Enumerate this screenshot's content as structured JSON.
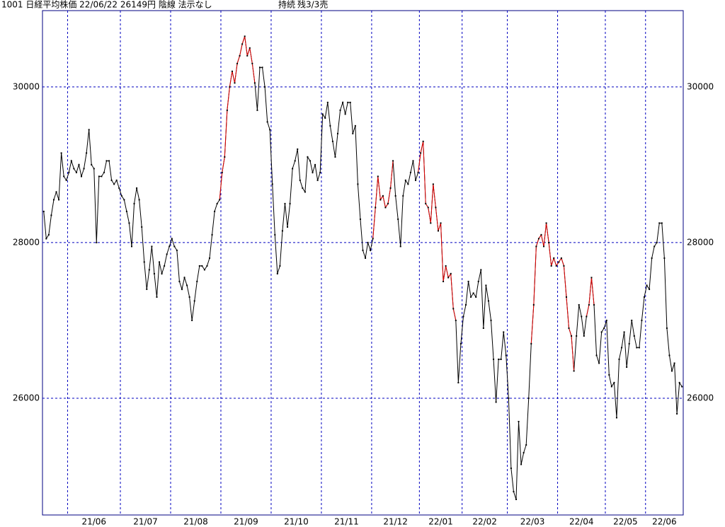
{
  "chart_data": {
    "type": "line",
    "title": "1001 日経平均株価 22/06/22 26149円 陰線 法示なし",
    "status": "持続",
    "position": "残3/3売",
    "ylim": [
      24500,
      30980
    ],
    "yticks": [
      26000,
      28000,
      30000
    ],
    "grid": true,
    "categories": [
      null,
      null,
      null,
      null,
      null,
      null,
      null,
      null,
      null,
      null,
      "21/06",
      null,
      null,
      null,
      null,
      null,
      null,
      null,
      null,
      null,
      null,
      null,
      null,
      null,
      null,
      null,
      null,
      null,
      null,
      null,
      null,
      "21/07",
      null,
      null,
      null,
      null,
      null,
      null,
      null,
      null,
      null,
      null,
      null,
      null,
      null,
      null,
      null,
      null,
      null,
      null,
      null,
      "21/08",
      null,
      null,
      null,
      null,
      null,
      null,
      null,
      null,
      null,
      null,
      null,
      null,
      null,
      null,
      null,
      null,
      null,
      null,
      null,
      "21/09",
      null,
      null,
      null,
      null,
      null,
      null,
      null,
      null,
      null,
      null,
      null,
      null,
      null,
      null,
      null,
      null,
      null,
      null,
      null,
      "21/10",
      null,
      null,
      null,
      null,
      null,
      null,
      null,
      null,
      null,
      null,
      null,
      null,
      null,
      null,
      null,
      null,
      null,
      null,
      null,
      "21/11",
      null,
      null,
      null,
      null,
      null,
      null,
      null,
      null,
      null,
      null,
      null,
      null,
      null,
      null,
      null,
      null,
      null,
      null,
      null,
      "21/12",
      null,
      null,
      null,
      null,
      null,
      null,
      null,
      null,
      null,
      null,
      null,
      null,
      null,
      null,
      null,
      null,
      null,
      null,
      "22/01",
      null,
      null,
      null,
      null,
      null,
      null,
      null,
      null,
      null,
      null,
      null,
      null,
      null,
      null,
      null,
      null,
      "22/02",
      null,
      null,
      null,
      null,
      null,
      null,
      null,
      null,
      null,
      null,
      null,
      null,
      null,
      null,
      null,
      null,
      null,
      "22/03",
      null,
      null,
      null,
      null,
      null,
      null,
      null,
      null,
      null,
      null,
      null,
      null,
      null,
      null,
      null,
      null,
      null,
      null,
      null,
      "22/04",
      null,
      null,
      null,
      null,
      null,
      null,
      null,
      null,
      null,
      null,
      null,
      null,
      null,
      null,
      null,
      null,
      null,
      null,
      "22/05",
      null,
      null,
      null,
      null,
      null,
      null,
      null,
      null,
      null,
      null,
      null,
      null,
      null,
      null,
      null,
      "22/06",
      null,
      null,
      null,
      null,
      null,
      null,
      null,
      null,
      null,
      null,
      null,
      null,
      null,
      null
    ],
    "series": [
      {
        "color": "#000000",
        "values": [
          28400,
          28050,
          28100,
          28350,
          28550,
          28650,
          28550,
          29150,
          28850,
          28800,
          28900,
          29050,
          28950,
          28900,
          29000,
          28850,
          28950,
          29150,
          29450,
          29000,
          28950,
          28000,
          28850,
          28850,
          28900,
          29050,
          29050,
          28800,
          28750,
          28800,
          28700,
          28600,
          28550,
          28400,
          28250,
          27950,
          28500,
          28700,
          28550,
          28200,
          27750,
          27400,
          27650,
          27950,
          27600,
          27300,
          27750,
          27600,
          27700,
          27850,
          27950,
          28050,
          27950,
          27900,
          27500,
          27400,
          27550,
          27450,
          27300,
          27000,
          27250,
          27500,
          27700,
          27700,
          27650,
          27700,
          27800,
          28100,
          28400,
          28500,
          28550,
          28900,
          29100,
          29700,
          30000,
          30200,
          30050,
          30300,
          30400,
          30550,
          30650,
          30400,
          30500,
          30300,
          30050,
          29700,
          30250,
          30250,
          30000,
          29550,
          29450,
          28750,
          28100,
          27600,
          27700,
          28150,
          28500,
          28200,
          28500,
          28950,
          29050,
          29200,
          28800,
          28700,
          28650,
          29100,
          29050,
          28900,
          29000,
          28800,
          28900,
          29650,
          29600,
          29800,
          29500,
          29300,
          29100,
          29400,
          29700,
          29800,
          29650,
          29800,
          29800,
          29400,
          29500,
          28750,
          28300,
          27900,
          27800,
          28000,
          27900,
          28050,
          28450,
          28850,
          28550,
          28600,
          28450,
          28500,
          28700,
          29050,
          28600,
          28300,
          27950,
          28600,
          28800,
          28750,
          28900,
          29050,
          28800,
          28900,
          29150,
          29300,
          28500,
          28450,
          28250,
          28750,
          28450,
          28150,
          28250,
          27500,
          27700,
          27550,
          27600,
          27150,
          27000,
          26200,
          26700,
          27050,
          27200,
          27500,
          27300,
          27350,
          27300,
          27500,
          27650,
          26900,
          27450,
          27250,
          27000,
          26500,
          25950,
          26500,
          26500,
          26850,
          26550,
          26000,
          25100,
          24800,
          24700,
          25700,
          25150,
          25300,
          25400,
          26000,
          26700,
          27200,
          27950,
          28050,
          28100,
          27950,
          28250,
          28000,
          27700,
          27800,
          27700,
          27750,
          27800,
          27700,
          27300,
          26900,
          26800,
          26350,
          26800,
          27200,
          27050,
          26800,
          27050,
          27200,
          27550,
          27200,
          26550,
          26450,
          26850,
          26900,
          27000,
          26300,
          26150,
          26200,
          25750,
          26500,
          26650,
          26850,
          26400,
          26700,
          27000,
          26800,
          26650,
          26650,
          27000,
          27300,
          27450,
          27400,
          27800,
          27950,
          28000,
          28250,
          28250,
          27800,
          26900,
          26550,
          26350,
          26450,
          25800,
          26200,
          26149
        ]
      },
      {
        "color": "#e00000",
        "values": [
          null,
          null,
          null,
          null,
          null,
          null,
          null,
          null,
          null,
          null,
          null,
          null,
          null,
          null,
          null,
          null,
          null,
          null,
          null,
          null,
          null,
          null,
          null,
          null,
          null,
          null,
          null,
          null,
          null,
          null,
          null,
          null,
          null,
          null,
          null,
          null,
          null,
          null,
          null,
          null,
          null,
          null,
          null,
          null,
          null,
          null,
          null,
          null,
          null,
          null,
          null,
          null,
          null,
          null,
          null,
          null,
          null,
          null,
          null,
          null,
          null,
          null,
          null,
          null,
          null,
          null,
          null,
          null,
          null,
          null,
          28550,
          28900,
          29100,
          29700,
          30000,
          30200,
          30050,
          30300,
          30400,
          30550,
          30650,
          30400,
          30500,
          30300,
          30050,
          null,
          null,
          null,
          null,
          null,
          null,
          null,
          null,
          null,
          null,
          null,
          null,
          null,
          null,
          null,
          null,
          null,
          null,
          null,
          null,
          null,
          null,
          null,
          null,
          null,
          null,
          null,
          null,
          null,
          null,
          null,
          null,
          null,
          null,
          null,
          null,
          null,
          null,
          null,
          null,
          null,
          null,
          null,
          null,
          null,
          null,
          28050,
          28450,
          28850,
          28550,
          28600,
          28450,
          28500,
          28700,
          29050,
          null,
          null,
          null,
          null,
          null,
          null,
          null,
          null,
          null,
          28900,
          29150,
          29300,
          28500,
          28450,
          28250,
          28750,
          28450,
          28150,
          28250,
          27500,
          27700,
          27550,
          27600,
          27150,
          27000,
          null,
          null,
          null,
          null,
          null,
          null,
          null,
          null,
          null,
          null,
          null,
          null,
          null,
          null,
          null,
          null,
          null,
          null,
          null,
          null,
          null,
          null,
          null,
          null,
          null,
          null,
          null,
          null,
          null,
          26700,
          27200,
          27950,
          28050,
          28100,
          27950,
          28250,
          28000,
          27700,
          27800,
          27700,
          27750,
          27800,
          27700,
          27300,
          26900,
          26800,
          26350,
          null,
          null,
          null,
          null,
          27050,
          27200,
          27550,
          27200,
          null,
          null,
          null,
          null,
          null,
          null,
          null,
          null,
          null,
          null,
          null,
          null,
          null,
          null,
          null,
          null,
          null,
          null,
          null,
          null,
          null,
          null,
          null,
          null,
          null,
          null,
          null,
          null,
          null,
          null,
          null,
          null,
          null,
          null,
          null
        ]
      }
    ]
  }
}
